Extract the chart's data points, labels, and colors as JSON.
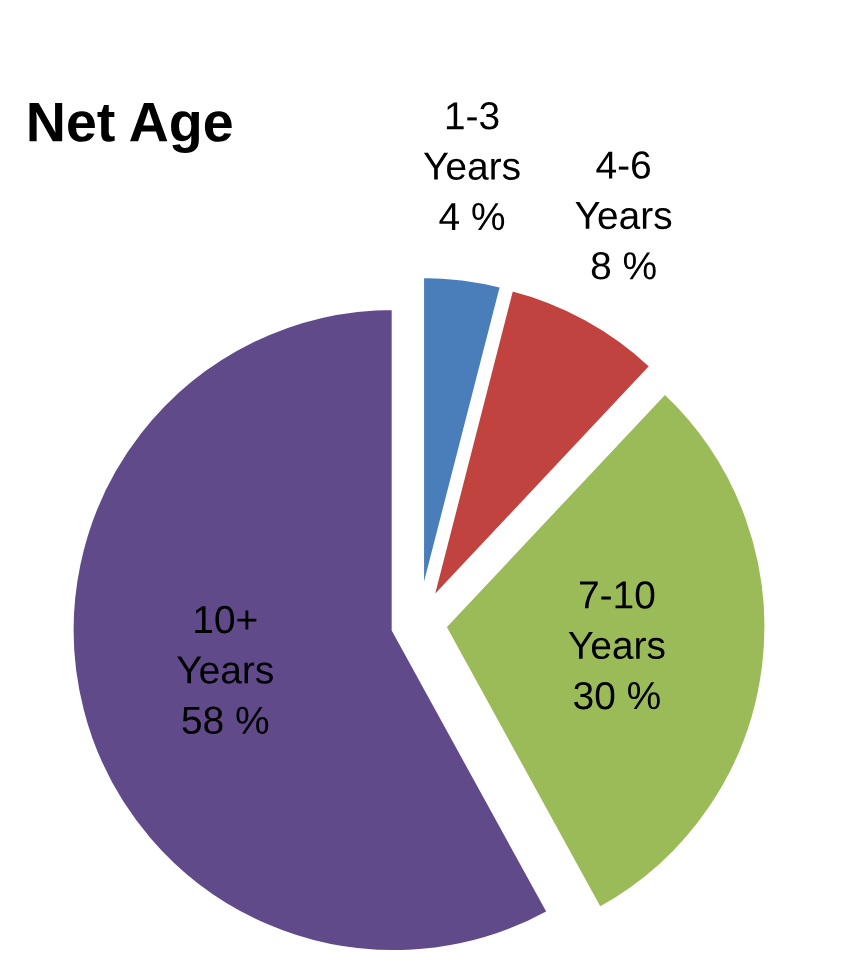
{
  "chart_data": {
    "type": "pie",
    "title": "Net Age",
    "categories": [
      "1-3 Years",
      "4-6 Years",
      "7-10 Years",
      "10+ Years"
    ],
    "values": [
      4,
      8,
      30,
      58
    ],
    "value_labels": [
      "4 %",
      "8 %",
      "30 %",
      "58 %"
    ],
    "colors": [
      "#4a7ebb",
      "#c0433f",
      "#9bbb59",
      "#614a8a"
    ],
    "legend": false
  }
}
